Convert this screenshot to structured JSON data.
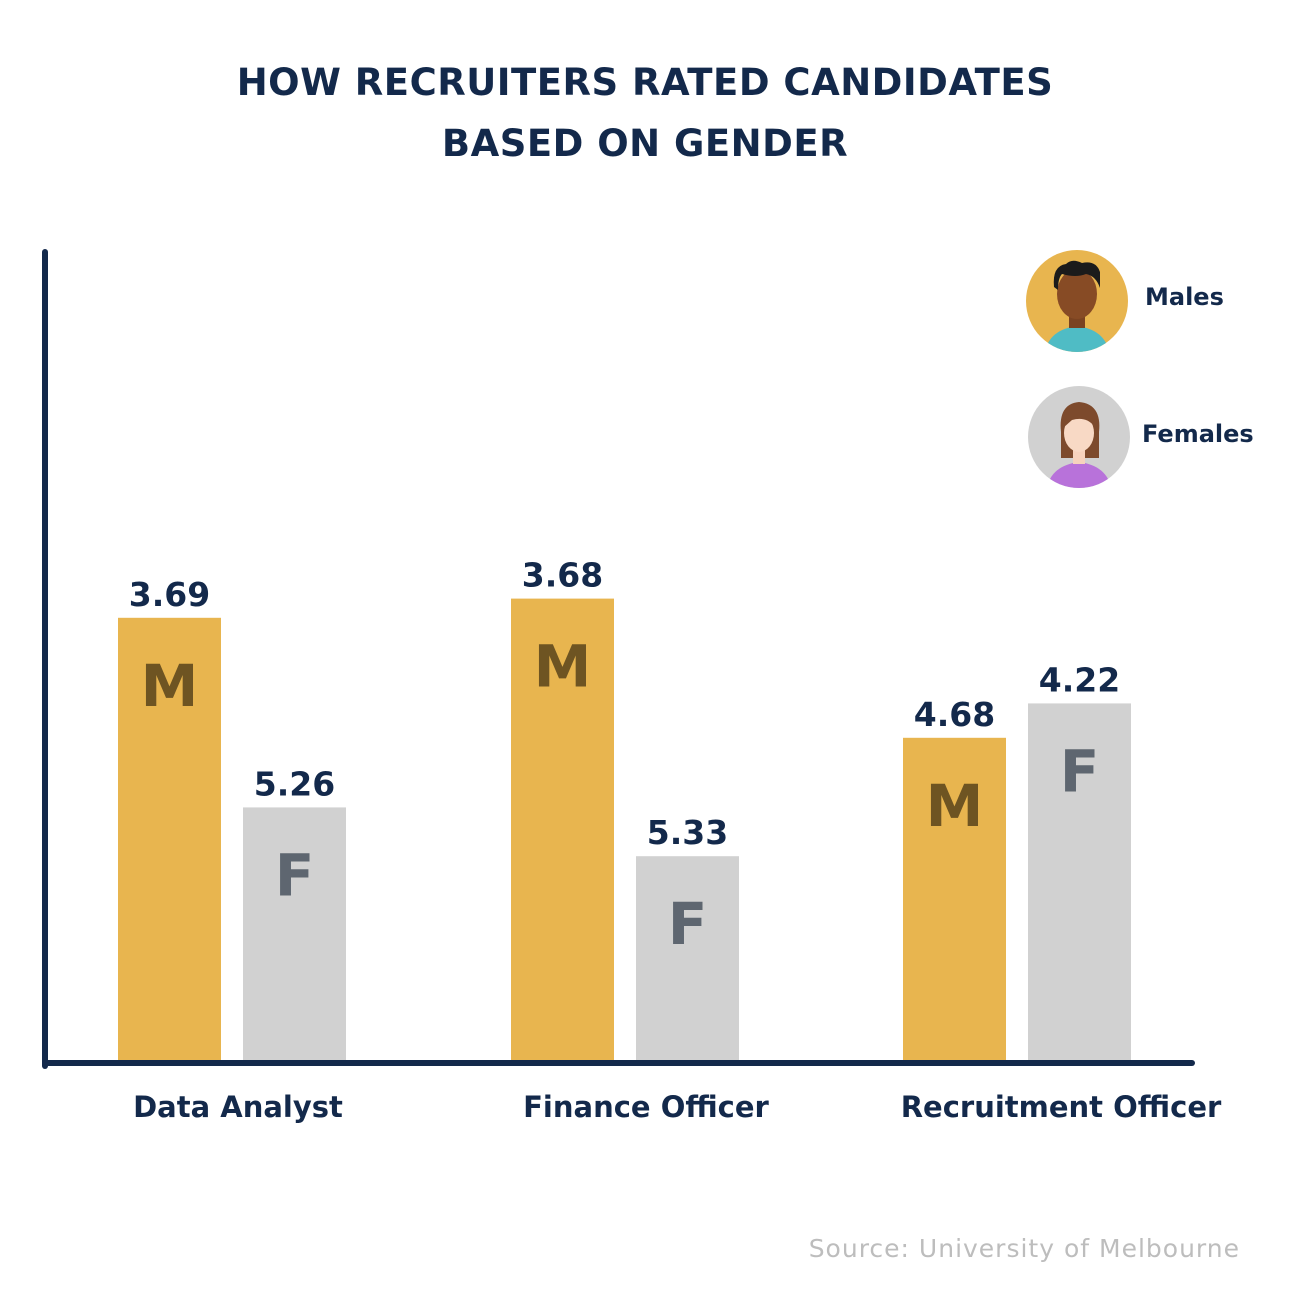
{
  "title_lines": [
    "HOW RECRUITERS RATED CANDIDATES",
    "BASED ON GENDER"
  ],
  "source": "Source: University of Melbourne",
  "colors": {
    "males": "#e8b54f",
    "females": "#d1d1d1",
    "axis": "#13294b",
    "text": "#13294b",
    "letter_m": "#6e5422",
    "letter_f": "#5e6670"
  },
  "chart_data": {
    "type": "bar",
    "categories": [
      "Data Analyst",
      "Finance Officer",
      "Recruitment Officer"
    ],
    "series": [
      {
        "name": "Males",
        "bar_letter": "M",
        "values": [
          3.69,
          3.68,
          4.68
        ],
        "icon": "male-avatar-icon"
      },
      {
        "name": "Females",
        "bar_letter": "F",
        "values": [
          5.26,
          5.33,
          4.22
        ],
        "icon": "female-avatar-icon"
      }
    ],
    "bar_heights_pct": [
      [
        55.4,
        57.8,
        40.4
      ],
      [
        31.7,
        25.6,
        44.7
      ]
    ],
    "legend_position": "top-right",
    "grid": false
  }
}
